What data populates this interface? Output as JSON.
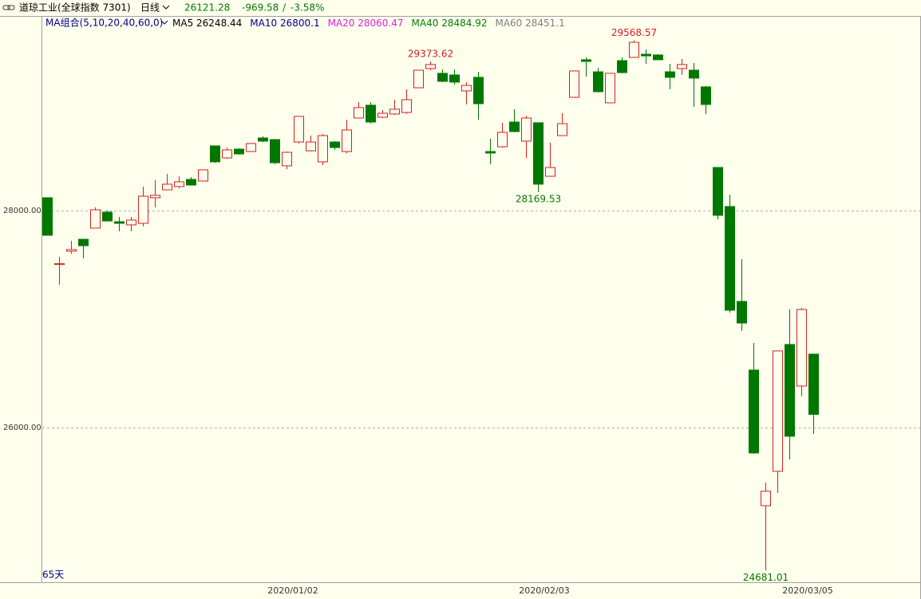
{
  "header": {
    "instrument": "道琼工业(全球指数 7301)",
    "period": "日线",
    "last": "26121.28",
    "change": "-969.58",
    "change_pct": "-3.58%"
  },
  "chart_data": {
    "type": "candlestick",
    "ma_title": "MA组合(5,10,20,40,60,0)",
    "ma_legend": [
      {
        "name": "MA5",
        "value": 26248.44,
        "color": "#000000"
      },
      {
        "name": "MA10",
        "value": 26800.1,
        "color": "#00008b"
      },
      {
        "name": "MA20",
        "value": 28060.47,
        "color": "#e020e0"
      },
      {
        "name": "MA40",
        "value": 28484.92,
        "color": "#008000"
      },
      {
        "name": "MA60",
        "value": 28451.1,
        "color": "#808080"
      }
    ],
    "days_label": "65天",
    "up_color": "#d42020",
    "down_color": "#007800",
    "categories": [
      null,
      null,
      null,
      null,
      null,
      null,
      null,
      null,
      null,
      null,
      null,
      null,
      null,
      null,
      null,
      null,
      null,
      null,
      null,
      null,
      null,
      "2020/01/02",
      null,
      null,
      null,
      null,
      null,
      null,
      null,
      null,
      null,
      null,
      null,
      null,
      null,
      null,
      null,
      null,
      null,
      null,
      null,
      null,
      "2020/02/03",
      null,
      null,
      null,
      null,
      null,
      null,
      null,
      null,
      null,
      null,
      null,
      null,
      null,
      null,
      null,
      null,
      null,
      null,
      null,
      null,
      null,
      "2020/03/05"
    ],
    "open": [
      28118,
      27502,
      27625,
      27735,
      27838,
      27985,
      27897,
      27868,
      27882,
      28118,
      28191,
      28221,
      28287,
      28272,
      28596,
      28485,
      28566,
      28544,
      28669,
      28654,
      28412,
      28632,
      28551,
      28449,
      28632,
      28544,
      28853,
      28971,
      28860,
      28890,
      28904,
      29132,
      29309,
      29265,
      29250,
      29103,
      29228,
      28544,
      28588,
      28816,
      28640,
      28809,
      28316,
      28691,
      29044,
      29390,
      29279,
      28993,
      29382,
      29412,
      29441,
      29434,
      29279,
      29309,
      29294,
      29140,
      28397,
      28037,
      27162,
      26529,
      25279,
      25596,
      26765,
      26382,
      26676
    ],
    "high": [
      28118,
      27574,
      27721,
      27735,
      28029,
      28000,
      27941,
      27941,
      28221,
      28279,
      28338,
      28316,
      28309,
      28375,
      28596,
      28581,
      28574,
      28618,
      28684,
      28662,
      28544,
      28868,
      28691,
      28706,
      28640,
      28838,
      29000,
      29000,
      28926,
      29022,
      29118,
      29294,
      29373.62,
      29301,
      29301,
      29184,
      29279,
      28662,
      28809,
      28934,
      28875,
      28809,
      28625,
      28897,
      29287,
      29412,
      29316,
      29265,
      29412,
      29568.57,
      29485,
      29441,
      29353,
      29397,
      29360,
      29147,
      28397,
      28147,
      27551,
      26779,
      25493,
      26706,
      27088,
      27103,
      26676
    ],
    "low": [
      27772,
      27316,
      27603,
      27559,
      27838,
      27904,
      27809,
      27809,
      27853,
      28029,
      28191,
      28206,
      28235,
      28272,
      28441,
      28478,
      28515,
      28544,
      28632,
      28426,
      28382,
      28618,
      28544,
      28419,
      28559,
      28529,
      28853,
      28801,
      28853,
      28882,
      28890,
      29132,
      29294,
      29184,
      29162,
      28978,
      28838,
      28426,
      28581,
      28721,
      28485,
      28169.53,
      28316,
      28691,
      29044,
      29235,
      29088,
      28993,
      29265,
      29412,
      29353,
      29390,
      29118,
      29250,
      28956,
      28890,
      27919,
      27059,
      26890,
      25757,
      24681.01,
      25397,
      25706,
      26287,
      25941
    ],
    "close": [
      27772,
      27510,
      27640,
      27676,
      28007,
      27904,
      27882,
      27912,
      28132,
      28140,
      28243,
      28265,
      28235,
      28375,
      28449,
      28559,
      28522,
      28618,
      28640,
      28441,
      28537,
      28868,
      28632,
      28691,
      28581,
      28743,
      28949,
      28816,
      28897,
      28934,
      29022,
      29294,
      29346,
      29191,
      29184,
      29154,
      28985,
      28530,
      28721,
      28728,
      28853,
      28243,
      28397,
      28801,
      29287,
      29375,
      29096,
      29265,
      29272,
      29551,
      29426,
      29390,
      29228,
      29346,
      29221,
      28978,
      27956,
      27081,
      26963,
      25765,
      25412,
      26706,
      25919,
      27088,
      26121.28
    ],
    "high_labels": [
      null,
      null,
      null,
      null,
      null,
      null,
      null,
      null,
      null,
      null,
      null,
      null,
      null,
      null,
      null,
      null,
      null,
      null,
      null,
      null,
      null,
      null,
      null,
      null,
      null,
      null,
      null,
      null,
      null,
      null,
      null,
      null,
      "29373.62",
      null,
      null,
      null,
      null,
      null,
      null,
      null,
      null,
      null,
      null,
      null,
      null,
      null,
      null,
      null,
      null,
      "29568.57",
      null,
      null,
      null,
      null,
      null,
      null,
      null,
      null,
      null,
      null,
      null,
      null,
      null,
      null,
      null
    ],
    "low_labels": [
      null,
      null,
      null,
      null,
      null,
      null,
      null,
      null,
      null,
      null,
      null,
      null,
      null,
      null,
      null,
      null,
      null,
      null,
      null,
      null,
      null,
      null,
      null,
      null,
      null,
      null,
      null,
      null,
      null,
      null,
      null,
      null,
      null,
      null,
      null,
      null,
      null,
      null,
      null,
      null,
      null,
      "28169.53",
      null,
      null,
      null,
      null,
      null,
      null,
      null,
      null,
      null,
      null,
      null,
      null,
      null,
      null,
      null,
      null,
      null,
      null,
      "24681.01",
      null,
      null,
      null,
      null
    ],
    "ylim": [
      24573,
      29794
    ],
    "yticks": [
      {
        "value": 26000,
        "label": "26000.00"
      },
      {
        "value": 28000,
        "label": "28000.00"
      }
    ],
    "grid": true
  }
}
